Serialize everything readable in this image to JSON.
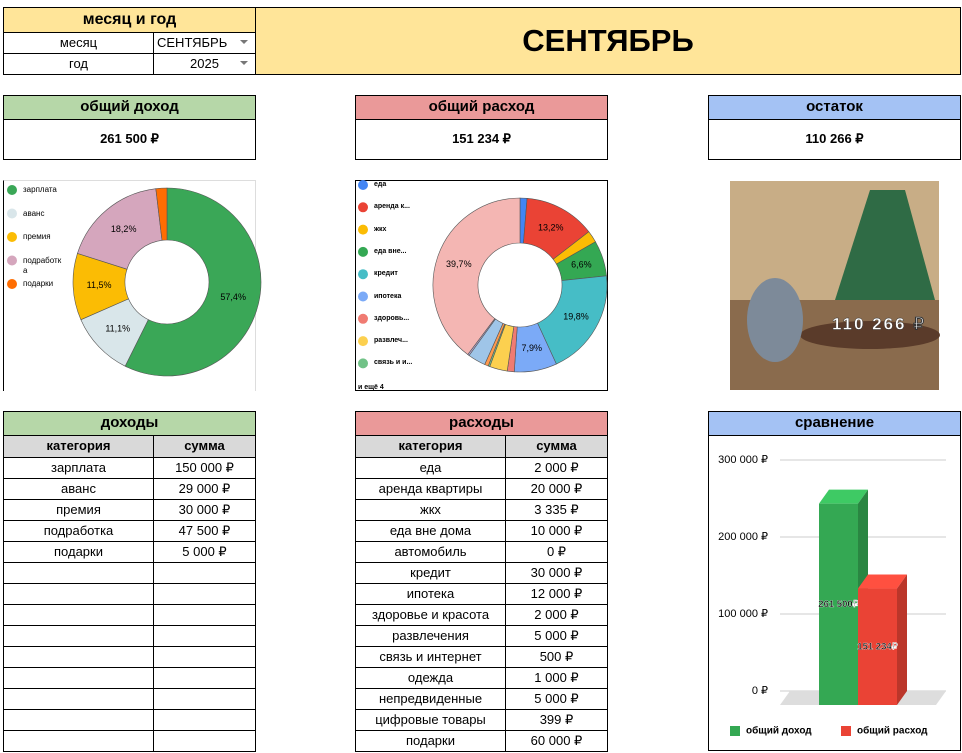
{
  "header": {
    "title": "месяц и год",
    "month_label": "месяц",
    "month": "СЕНТЯБРЬ",
    "year_label": "год",
    "year": "2025",
    "banner": "СЕНТЯБРЬ"
  },
  "summary": [
    {
      "title": "общий доход",
      "value": "261 500 ₽",
      "color": "#b6d7a8"
    },
    {
      "title": "общий расход",
      "value": "151 234 ₽",
      "color": "#ea9999"
    },
    {
      "title": "остаток",
      "value": "110 266 ₽",
      "color": "#a4c2f4"
    }
  ],
  "image": {
    "caption": "110 266 ₽"
  },
  "income_table": {
    "title": "доходы",
    "color": "#b6d7a8",
    "columns": [
      "категория",
      "сумма"
    ],
    "rows": [
      [
        "зарплата",
        "150 000 ₽"
      ],
      [
        "аванс",
        "29 000 ₽"
      ],
      [
        "премия",
        "30 000 ₽"
      ],
      [
        "подработка",
        "47 500 ₽"
      ],
      [
        "подарки",
        "5 000 ₽"
      ]
    ]
  },
  "expense_table": {
    "title": "расходы",
    "color": "#ea9999",
    "columns": [
      "категория",
      "сумма"
    ],
    "rows": [
      [
        "еда",
        "2 000 ₽"
      ],
      [
        "аренда квартиры",
        "20 000 ₽"
      ],
      [
        "жкх",
        "3 335 ₽"
      ],
      [
        "еда вне дома",
        "10 000 ₽"
      ],
      [
        "автомобиль",
        "0 ₽"
      ],
      [
        "кредит",
        "30 000 ₽"
      ],
      [
        "ипотека",
        "12 000 ₽"
      ],
      [
        "здоровье и красота",
        "2 000 ₽"
      ],
      [
        "развлечения",
        "5 000 ₽"
      ],
      [
        "связь и интернет",
        "500 ₽"
      ],
      [
        "одежда",
        "1 000 ₽"
      ],
      [
        "непредвиденные",
        "5 000 ₽"
      ],
      [
        "цифровые товары",
        "399 ₽"
      ],
      [
        "подарки",
        "60 000 ₽"
      ]
    ]
  },
  "chart_data": [
    {
      "type": "pie",
      "categories": [
        "зарплата",
        "аванс",
        "премия",
        "подработка",
        "подарки"
      ],
      "values": [
        57.4,
        11.1,
        11.5,
        18.2,
        1.9
      ],
      "value_labels": [
        "57,4%",
        "11,1%",
        "11,5%",
        "18,2%",
        null
      ],
      "colors": [
        "#3aa757",
        "#d9e6ea",
        "#fbbc04",
        "#d5a6bd",
        "#ff6d01"
      ]
    },
    {
      "type": "pie",
      "categories": [
        "еда",
        "аренда к...",
        "жкх",
        "еда вне...",
        "кредит",
        "ипотека",
        "здоровь...",
        "развлеч...",
        "связь и и...",
        null,
        null,
        null,
        null
      ],
      "values": [
        1.3,
        13.2,
        2.2,
        6.6,
        19.8,
        7.9,
        1.3,
        3.3,
        0.3,
        0.7,
        3.3,
        0.3,
        39.7
      ],
      "value_labels": [
        null,
        "13,2%",
        null,
        "6,6%",
        "19,8%",
        "7,9%",
        null,
        null,
        null,
        null,
        null,
        null,
        "39,7%"
      ],
      "colors": [
        "#4285f4",
        "#ea4335",
        "#fbbc04",
        "#34a853",
        "#46bdc6",
        "#7baaf7",
        "#f07b72",
        "#fcd04f",
        "#71c287",
        "#ff994d",
        "#9fc5e8",
        "#b4a7d6",
        "#f4b6b3"
      ],
      "more": "и ещё 4"
    },
    {
      "type": "bar3d",
      "title": "сравнение",
      "series": [
        {
          "name": "общий доход",
          "color": "#34a853",
          "values": [
            261500
          ],
          "value_labels": [
            "261 500₽"
          ]
        },
        {
          "name": "общий расход",
          "color": "#ea4335",
          "values": [
            151234
          ],
          "value_labels": [
            "151 234₽"
          ]
        }
      ],
      "ylim": [
        0,
        300000
      ],
      "yticks": [
        {
          "value": 0,
          "label": "0 ₽"
        },
        {
          "value": 100000,
          "label": "100 000 ₽"
        },
        {
          "value": 200000,
          "label": "200 000 ₽"
        },
        {
          "value": 300000,
          "label": "300 000 ₽"
        }
      ],
      "grid": true
    }
  ]
}
